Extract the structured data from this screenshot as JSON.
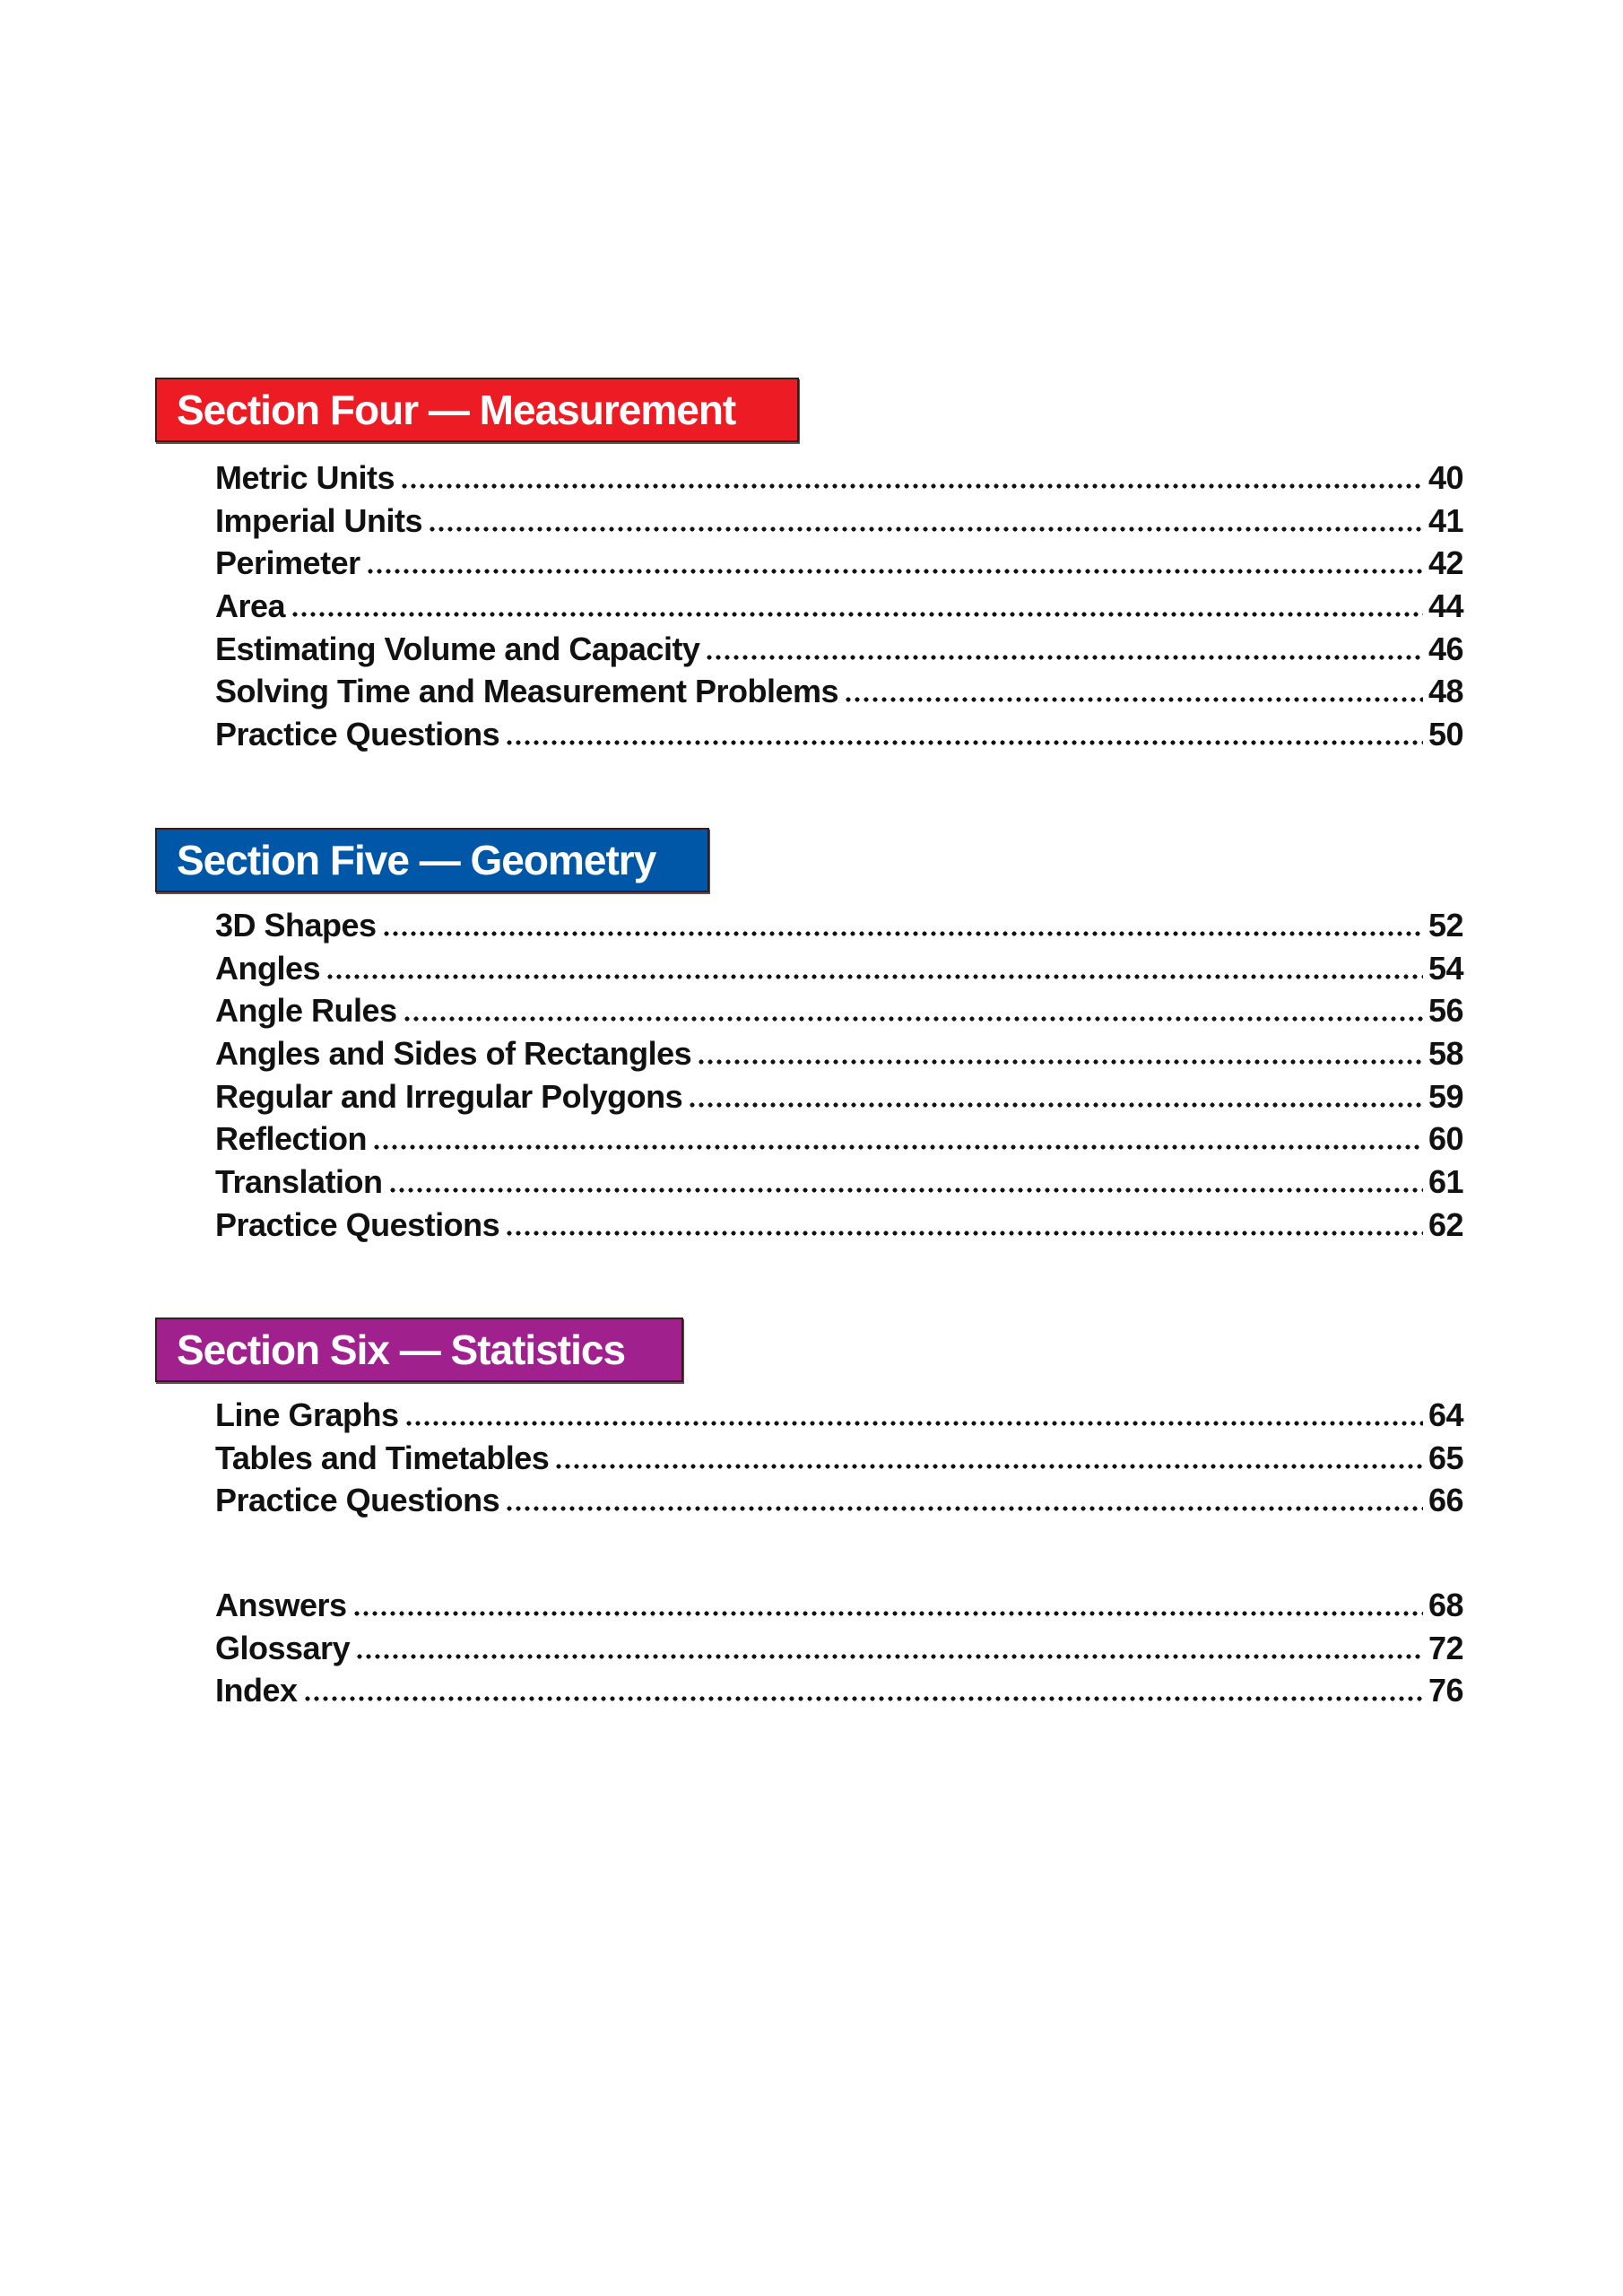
{
  "colors": {
    "section_four": "#ED1C24",
    "section_five": "#0057A8",
    "section_six": "#A0208E"
  },
  "sections": [
    {
      "title": "Section Four — Measurement",
      "entries": [
        {
          "label": "Metric Units",
          "page": "40"
        },
        {
          "label": "Imperial Units",
          "page": "41"
        },
        {
          "label": "Perimeter",
          "page": "42"
        },
        {
          "label": "Area",
          "page": "44"
        },
        {
          "label": "Estimating Volume and Capacity",
          "page": "46"
        },
        {
          "label": "Solving Time and Measurement Problems",
          "page": "48"
        },
        {
          "label": "Practice Questions",
          "page": "50"
        }
      ]
    },
    {
      "title": "Section Five — Geometry",
      "entries": [
        {
          "label": "3D Shapes",
          "page": "52"
        },
        {
          "label": "Angles",
          "page": "54"
        },
        {
          "label": "Angle Rules",
          "page": "56"
        },
        {
          "label": "Angles and Sides of Rectangles",
          "page": "58"
        },
        {
          "label": "Regular and Irregular Polygons",
          "page": "59"
        },
        {
          "label": "Reflection",
          "page": "60"
        },
        {
          "label": "Translation",
          "page": "61"
        },
        {
          "label": "Practice Questions",
          "page": "62"
        }
      ]
    },
    {
      "title": "Section Six — Statistics",
      "entries": [
        {
          "label": "Line Graphs",
          "page": "64"
        },
        {
          "label": "Tables and Timetables",
          "page": "65"
        },
        {
          "label": "Practice Questions",
          "page": "66"
        }
      ]
    }
  ],
  "back_matter": [
    {
      "label": "Answers",
      "page": "68"
    },
    {
      "label": "Glossary",
      "page": "72"
    },
    {
      "label": "Index",
      "page": "76"
    }
  ]
}
